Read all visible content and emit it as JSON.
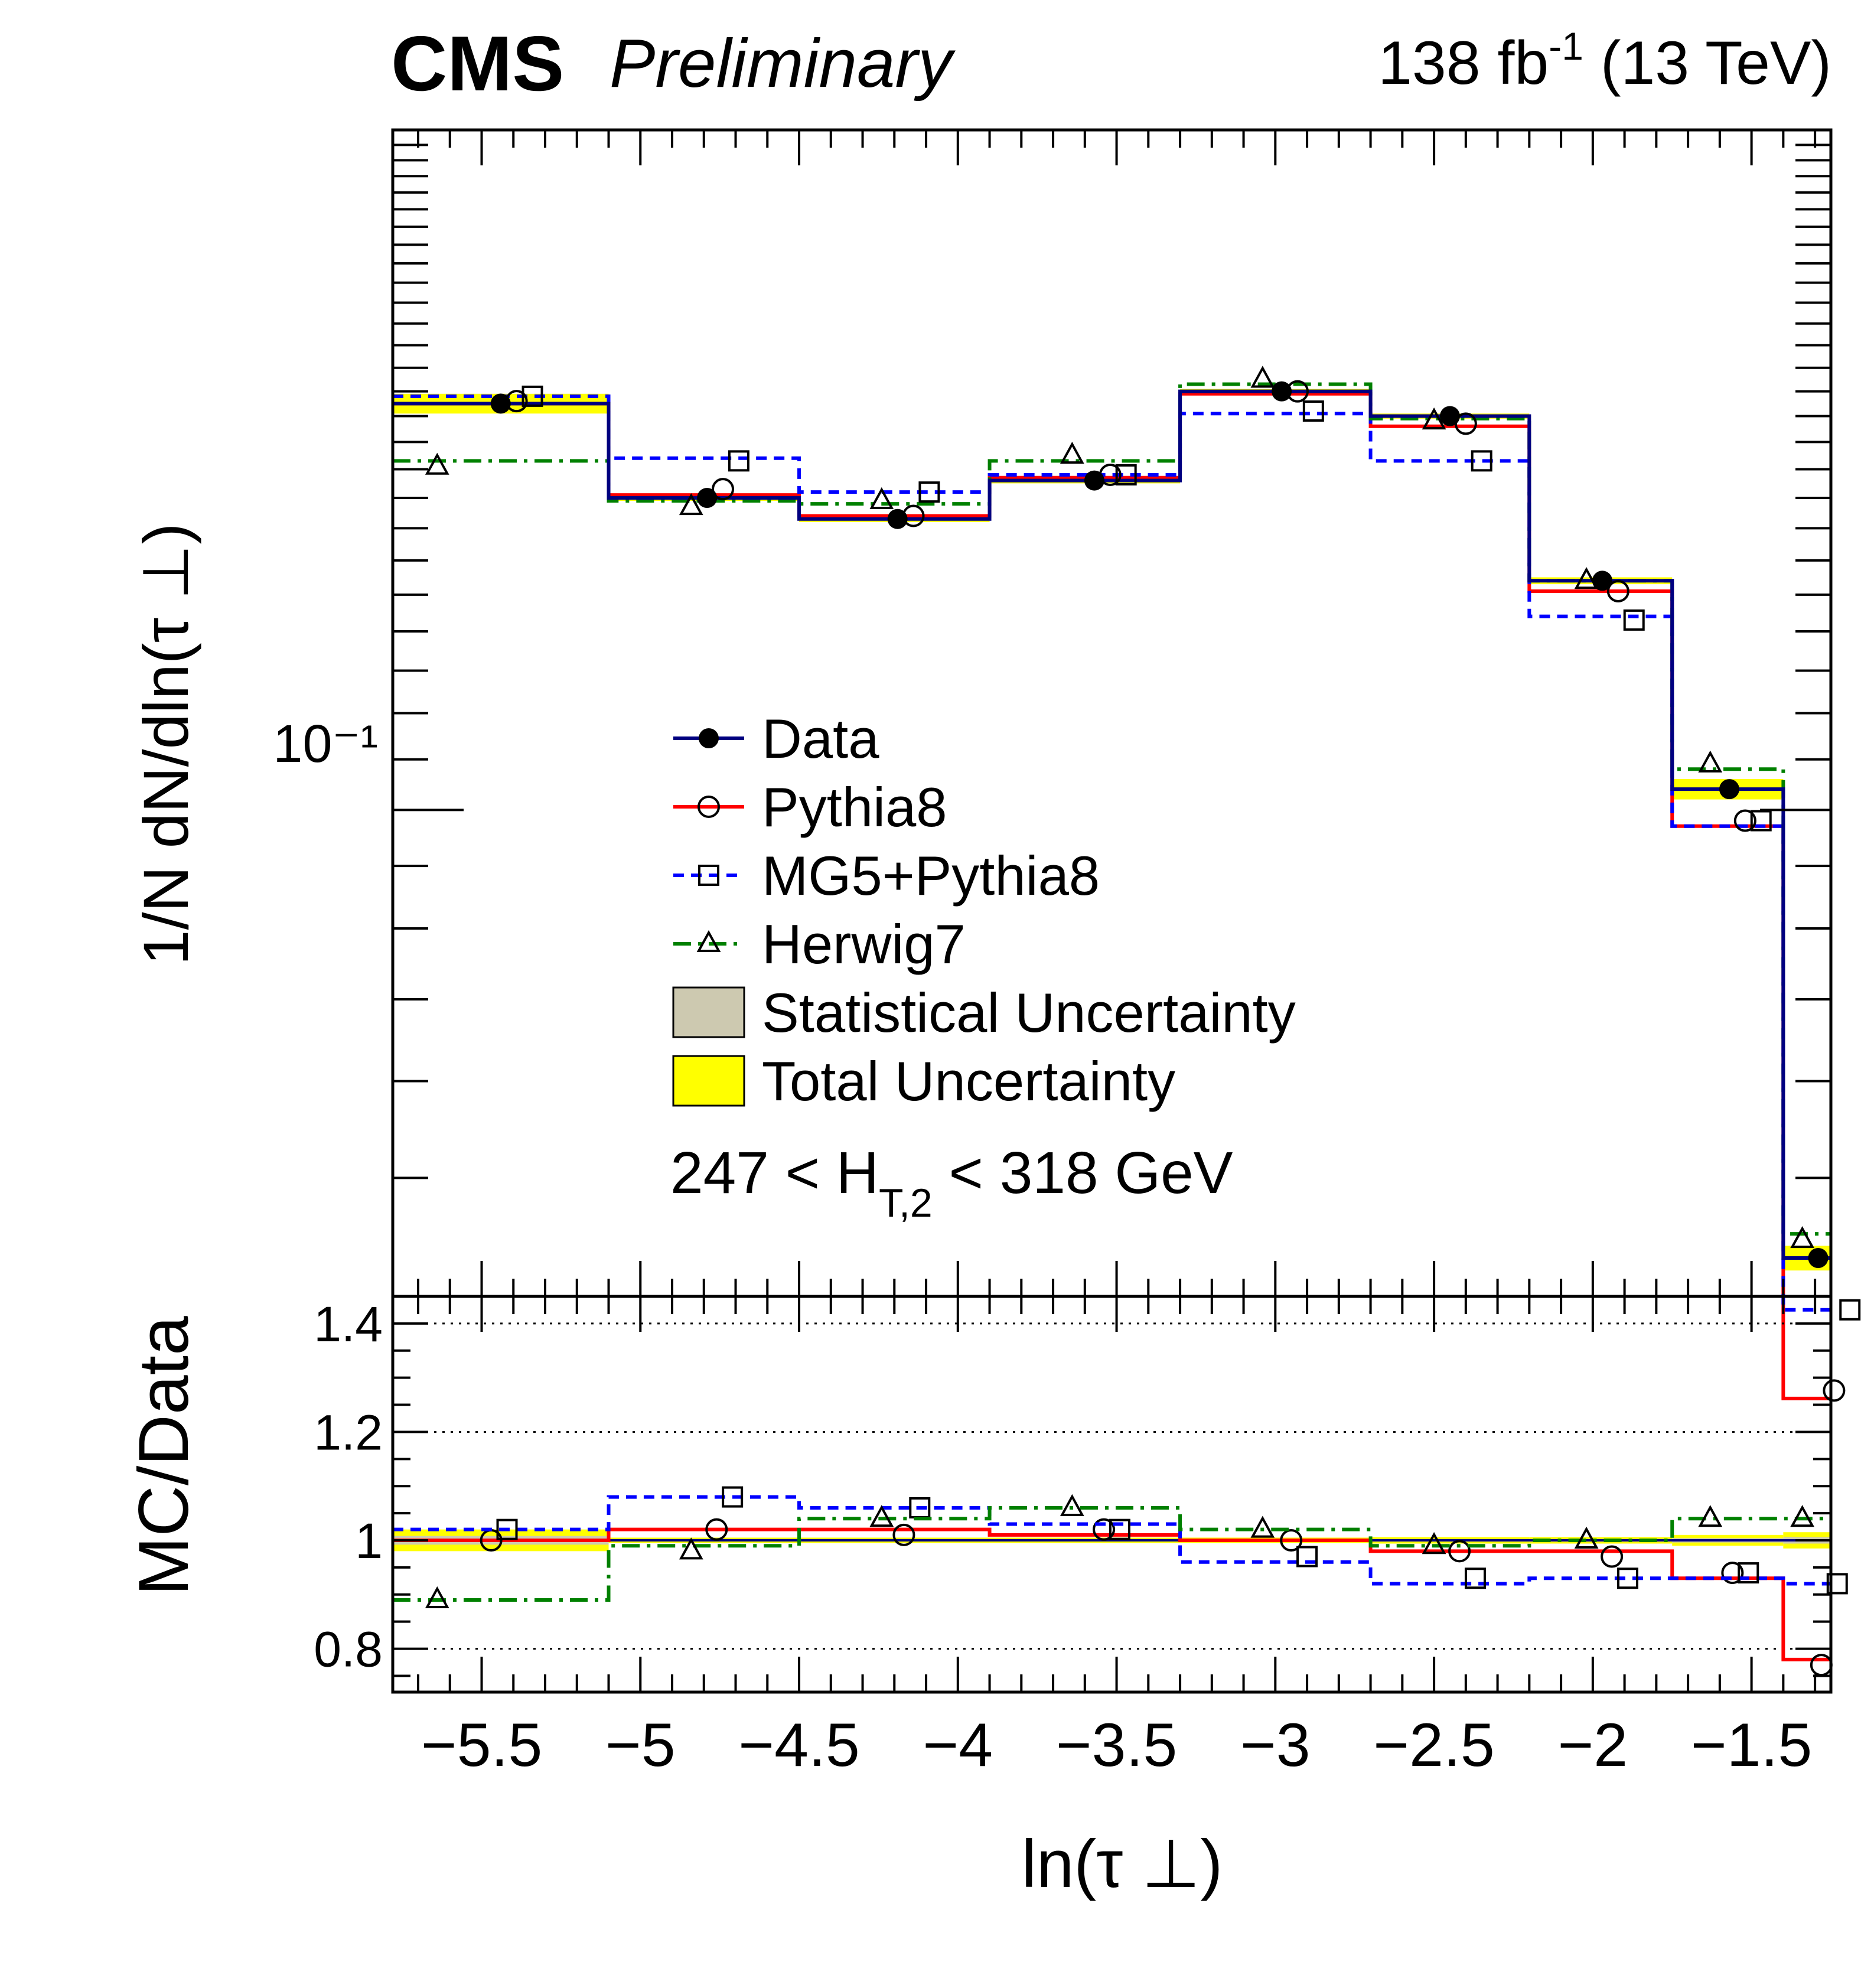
{
  "header": {
    "experiment": "CMS",
    "status": "Preliminary",
    "lumi_value": "138 fb",
    "lumi_exp": "-1",
    "energy": "(13 TeV)"
  },
  "colors": {
    "data": "#000080",
    "pythia8": "#ff0000",
    "mg5": "#0000ff",
    "herwig7": "#008000",
    "stat_band": "#cdc9b0",
    "total_band": "#ffff00"
  },
  "chart_data": [
    {
      "type": "line",
      "panel": "main",
      "xlabel": "ln(τ ⊥)",
      "ylabel": "1/N dN/dln(τ ⊥)",
      "y_scale": "log",
      "ylim": [
        0.04,
        0.36
      ],
      "xlim": [
        -5.78,
        -1.25
      ],
      "y_tick_labels": [
        "10⁻¹"
      ],
      "annotation": "247 < H_T,2 < 318 GeV",
      "legend": [
        "Data",
        "Pythia8",
        "MG5+Pythia8",
        "Herwig7",
        "Statistical Uncertainty",
        "Total Uncertainty"
      ],
      "legend_position": "center",
      "bin_edges": [
        -5.78,
        -5.1,
        -4.5,
        -3.9,
        -3.3,
        -2.7,
        -2.2,
        -1.75,
        -1.4,
        -1.25
      ],
      "data": {
        "name": "Data",
        "x": [
          -5.44,
          -4.79,
          -4.19,
          -3.57,
          -2.98,
          -2.45,
          -1.97,
          -1.57,
          -1.29
        ],
        "y": [
          0.215,
          0.18,
          0.173,
          0.186,
          0.22,
          0.21,
          0.154,
          0.104,
          0.043
        ]
      },
      "series": [
        {
          "name": "Pythia8",
          "values": [
            0.215,
            0.181,
            0.174,
            0.187,
            0.219,
            0.206,
            0.151,
            0.097,
            0.033
          ],
          "markers_x": [
            -5.39,
            -4.74,
            -4.14,
            -3.52,
            -2.93,
            -2.4,
            -1.92,
            -1.52,
            -1.24
          ],
          "markers_y": [
            0.216,
            0.183,
            0.174,
            0.188,
            0.22,
            0.207,
            0.151,
            0.098,
            0.0335
          ]
        },
        {
          "name": "MG5+Pythia8",
          "values": [
            0.218,
            0.194,
            0.182,
            0.188,
            0.211,
            0.193,
            0.144,
            0.097,
            0.039
          ],
          "markers_x": [
            -5.34,
            -4.69,
            -4.09,
            -3.47,
            -2.88,
            -2.35,
            -1.87,
            -1.47,
            -1.19
          ],
          "markers_y": [
            0.218,
            0.193,
            0.182,
            0.188,
            0.212,
            0.193,
            0.143,
            0.098,
            0.039
          ]
        },
        {
          "name": "Herwig7",
          "values": [
            0.193,
            0.179,
            0.178,
            0.193,
            0.223,
            0.209,
            0.154,
            0.108,
            0.045
          ],
          "markers_x": [
            -5.64,
            -4.84,
            -4.24,
            -3.64,
            -3.04,
            -2.5,
            -2.02,
            -1.63,
            -1.34
          ],
          "markers_y": [
            0.191,
            0.177,
            0.179,
            0.195,
            0.225,
            0.208,
            0.154,
            0.109,
            0.0445
          ]
        }
      ],
      "total_uncertainty": [
        0.004,
        0.001,
        0.001,
        0.001,
        0.001,
        0.001,
        0.001,
        0.002,
        0.001
      ]
    },
    {
      "type": "line",
      "panel": "ratio",
      "xlabel": "ln(τ ⊥)",
      "ylabel": "MC/Data",
      "ylim": [
        0.72,
        1.45
      ],
      "xlim": [
        -5.78,
        -1.25
      ],
      "x_tick_labels": [
        "−5.5",
        "−5",
        "−4.5",
        "−4",
        "−3.5",
        "−3",
        "−2.5",
        "−2",
        "−1.5"
      ],
      "x_tick_values": [
        -5.5,
        -5,
        -4.5,
        -4,
        -3.5,
        -3,
        -2.5,
        -2,
        -1.5
      ],
      "y_tick_labels": [
        "0.8",
        "1",
        "1.2",
        "1.4"
      ],
      "y_tick_values": [
        0.8,
        1.0,
        1.2,
        1.4
      ],
      "bin_edges": [
        -5.78,
        -5.1,
        -4.5,
        -3.9,
        -3.3,
        -2.7,
        -2.2,
        -1.75,
        -1.4,
        -1.25
      ],
      "series": [
        {
          "name": "Pythia8",
          "values": [
            1.0,
            1.02,
            1.02,
            1.01,
            1.0,
            0.98,
            0.98,
            0.93,
            0.78
          ],
          "markers_x": [
            -5.47,
            -4.76,
            -4.17,
            -3.54,
            -2.95,
            -2.42,
            -1.94,
            -1.56,
            -1.28
          ],
          "markers_y": [
            1.0,
            1.02,
            1.01,
            1.02,
            1.0,
            0.98,
            0.97,
            0.94,
            0.77
          ]
        },
        {
          "name": "MG5+Pythia8",
          "values": [
            1.02,
            1.08,
            1.06,
            1.03,
            0.96,
            0.92,
            0.93,
            0.93,
            0.92
          ],
          "markers_x": [
            -5.42,
            -4.71,
            -4.12,
            -3.49,
            -2.9,
            -2.37,
            -1.89,
            -1.51,
            -1.23
          ],
          "markers_y": [
            1.02,
            1.08,
            1.06,
            1.02,
            0.97,
            0.93,
            0.93,
            0.94,
            0.92
          ]
        },
        {
          "name": "Herwig7",
          "values": [
            0.89,
            0.99,
            1.04,
            1.06,
            1.02,
            0.99,
            1.0,
            1.04,
            1.04
          ],
          "markers_x": [
            -5.64,
            -4.84,
            -4.24,
            -3.64,
            -3.04,
            -2.5,
            -2.02,
            -1.63,
            -1.34
          ],
          "markers_y": [
            0.89,
            0.98,
            1.04,
            1.06,
            1.02,
            0.99,
            1.0,
            1.04,
            1.04
          ]
        }
      ],
      "total_uncertainty": [
        0.02,
        0.005,
        0.005,
        0.005,
        0.005,
        0.006,
        0.006,
        0.01,
        0.015
      ]
    }
  ],
  "ui": {
    "ratio_ylabel": "MC/Data",
    "main_ylabel": "1/N dN/dln(τ ⊥)",
    "xlabel": "ln(τ ⊥)",
    "main_ytick": "10⁻¹",
    "annotation_main": "247 < H",
    "annotation_sub": "T,2",
    "annotation_tail": " < 318 GeV"
  }
}
